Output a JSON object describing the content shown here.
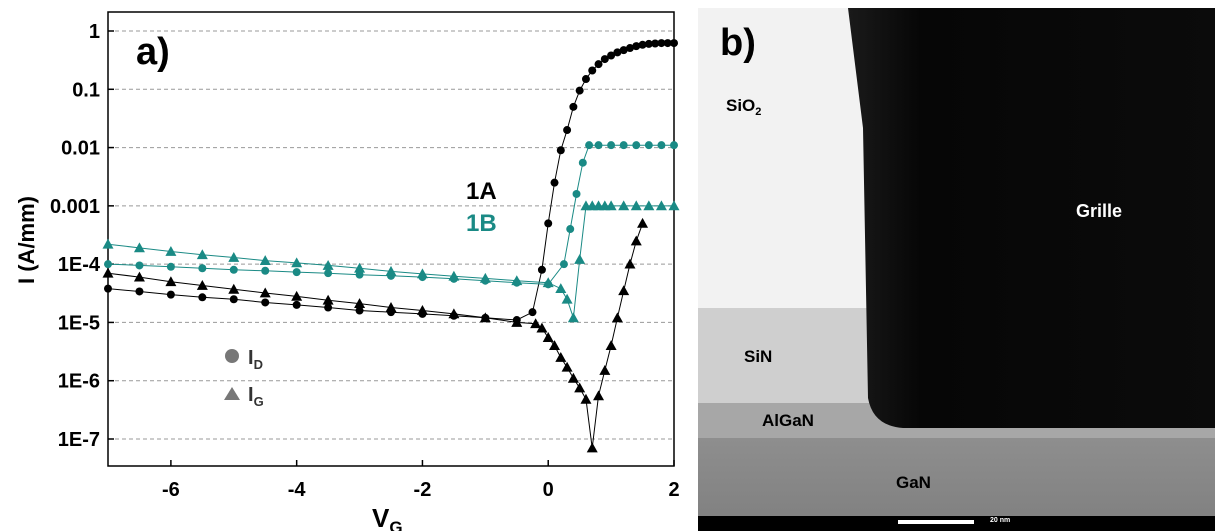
{
  "panel_a": {
    "panel_label": "a)",
    "ylabel": "I (A/mm)",
    "xlabel_main": "V",
    "xlabel_sub": "G",
    "series_labels": {
      "s1A": "1A",
      "s1B": "1B"
    },
    "legend": [
      {
        "marker": "circle",
        "main": "I",
        "sub": "D"
      },
      {
        "marker": "triangle",
        "main": "I",
        "sub": "G"
      }
    ]
  },
  "chart_data": {
    "type": "scatter",
    "x_scale": "linear",
    "y_scale": "log",
    "xlim": [
      -7,
      2
    ],
    "ylim": [
      1e-08,
      1
    ],
    "x_ticks": [
      -6,
      -4,
      -2,
      0,
      2
    ],
    "x_tick_labels": [
      "-6",
      "-4",
      "-2",
      "0",
      "2"
    ],
    "y_ticks": [
      1,
      0.1,
      0.01,
      0.001,
      0.0001,
      1e-05,
      1e-06,
      1e-07
    ],
    "y_tick_labels": [
      "1",
      "0.1",
      "0.01",
      "0.001",
      "1E-4",
      "1E-5",
      "1E-6",
      "1E-7"
    ],
    "grid": "horizontal dashed",
    "legend_position": "bottom-left",
    "colors": {
      "1A": "#000000",
      "1B": "#1a8a85"
    },
    "series": [
      {
        "name": "1A",
        "quantity": "ID",
        "marker": "circle",
        "color": "#000000",
        "x": [
          -7.0,
          -6.5,
          -6.0,
          -5.5,
          -5.0,
          -4.5,
          -4.0,
          -3.5,
          -3.0,
          -2.5,
          -2.0,
          -1.5,
          -1.0,
          -0.5,
          -0.25,
          -0.1,
          0.0,
          0.1,
          0.2,
          0.3,
          0.4,
          0.5,
          0.6,
          0.7,
          0.8,
          0.9,
          1.0,
          1.1,
          1.2,
          1.3,
          1.4,
          1.5,
          1.6,
          1.7,
          1.8,
          1.9,
          2.0
        ],
        "y": [
          3.8e-05,
          3.4e-05,
          3e-05,
          2.7e-05,
          2.5e-05,
          2.2e-05,
          2e-05,
          1.8e-05,
          1.6e-05,
          1.5e-05,
          1.4e-05,
          1.3e-05,
          1.2e-05,
          1.1e-05,
          1.5e-05,
          8e-05,
          0.0005,
          0.0025,
          0.009,
          0.02,
          0.05,
          0.095,
          0.15,
          0.21,
          0.27,
          0.33,
          0.38,
          0.43,
          0.47,
          0.51,
          0.55,
          0.58,
          0.6,
          0.61,
          0.62,
          0.62,
          0.62
        ]
      },
      {
        "name": "1B",
        "quantity": "ID",
        "marker": "circle",
        "color": "#1a8a85",
        "x": [
          -7.0,
          -6.5,
          -6.0,
          -5.5,
          -5.0,
          -4.5,
          -4.0,
          -3.5,
          -3.0,
          -2.5,
          -2.0,
          -1.5,
          -1.0,
          -0.5,
          0.0,
          0.25,
          0.35,
          0.45,
          0.55,
          0.65,
          0.8,
          1.0,
          1.2,
          1.4,
          1.6,
          1.8,
          2.0
        ],
        "y": [
          0.0001,
          9.5e-05,
          9e-05,
          8.5e-05,
          8e-05,
          7.7e-05,
          7.3e-05,
          7e-05,
          6.6e-05,
          6.3e-05,
          6e-05,
          5.6e-05,
          5.2e-05,
          4.8e-05,
          4.5e-05,
          0.0001,
          0.0004,
          0.0016,
          0.0055,
          0.011,
          0.011,
          0.011,
          0.011,
          0.011,
          0.011,
          0.011,
          0.011
        ]
      },
      {
        "name": "1A",
        "quantity": "IG",
        "marker": "triangle",
        "color": "#000000",
        "x": [
          -7.0,
          -6.5,
          -6.0,
          -5.5,
          -5.0,
          -4.5,
          -4.0,
          -3.5,
          -3.0,
          -2.5,
          -2.0,
          -1.5,
          -1.0,
          -0.5,
          -0.2,
          -0.1,
          0.0,
          0.1,
          0.2,
          0.3,
          0.4,
          0.5,
          0.6,
          0.7,
          0.8,
          0.9,
          1.0,
          1.1,
          1.2,
          1.3,
          1.4,
          1.5
        ],
        "y": [
          7e-05,
          6e-05,
          5e-05,
          4.3e-05,
          3.7e-05,
          3.2e-05,
          2.8e-05,
          2.4e-05,
          2.1e-05,
          1.8e-05,
          1.6e-05,
          1.4e-05,
          1.2e-05,
          1e-05,
          9.5e-06,
          8e-06,
          5.5e-06,
          4e-06,
          2.5e-06,
          1.7e-06,
          1.1e-06,
          7.5e-07,
          4.8e-07,
          7e-08,
          5.5e-07,
          1.5e-06,
          4e-06,
          1.2e-05,
          3.5e-05,
          0.0001,
          0.00025,
          0.0005
        ]
      },
      {
        "name": "1B",
        "quantity": "IG",
        "marker": "triangle",
        "color": "#1a8a85",
        "x": [
          -7.0,
          -6.5,
          -6.0,
          -5.5,
          -5.0,
          -4.5,
          -4.0,
          -3.5,
          -3.0,
          -2.5,
          -2.0,
          -1.5,
          -1.0,
          -0.5,
          0.0,
          0.2,
          0.3,
          0.4,
          0.5,
          0.6,
          0.7,
          0.8,
          0.9,
          1.0,
          1.2,
          1.4,
          1.6,
          1.8,
          2.0
        ],
        "y": [
          0.00022,
          0.00019,
          0.000165,
          0.000145,
          0.00013,
          0.000115,
          0.000105,
          9.5e-05,
          8.5e-05,
          7.5e-05,
          6.8e-05,
          6.2e-05,
          5.7e-05,
          5.2e-05,
          4.8e-05,
          3.8e-05,
          2.5e-05,
          1.2e-05,
          0.00012,
          0.001,
          0.001,
          0.001,
          0.001,
          0.001,
          0.001,
          0.001,
          0.001,
          0.001,
          0.001
        ]
      }
    ]
  },
  "panel_b": {
    "panel_label": "b)",
    "labels": {
      "sio2_main": "SiO",
      "sio2_sub": "2",
      "sin": "SiN",
      "algan": "AlGaN",
      "gan": "GaN",
      "grille": "Grille",
      "scale_text": "20 nm"
    }
  }
}
